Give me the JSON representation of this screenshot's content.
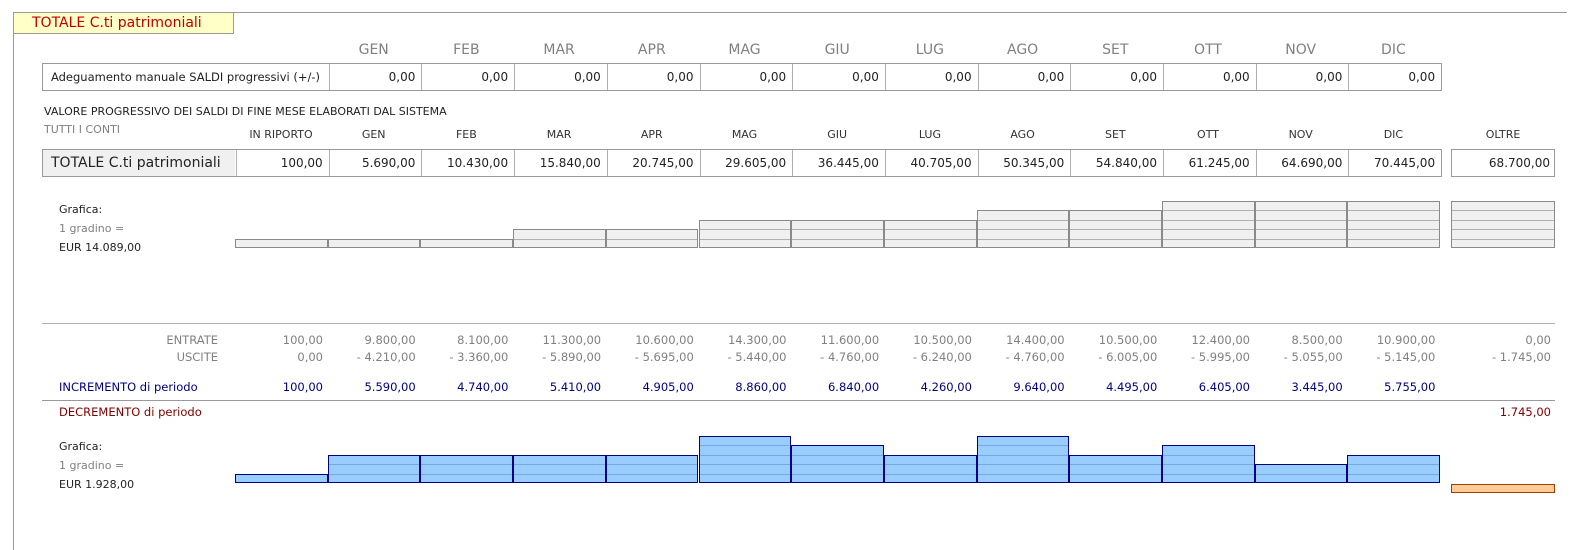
{
  "title": "TOTALE C.ti patrimoniali",
  "months": [
    "GEN",
    "FEB",
    "MAR",
    "APR",
    "MAG",
    "GIU",
    "LUG",
    "AGO",
    "SET",
    "OTT",
    "NOV",
    "DIC"
  ],
  "adjustment": {
    "label": "Adeguamento manuale SALDI progressivi (+/-)",
    "values": [
      "0,00",
      "0,00",
      "0,00",
      "0,00",
      "0,00",
      "0,00",
      "0,00",
      "0,00",
      "0,00",
      "0,00",
      "0,00",
      "0,00"
    ]
  },
  "section_caption": "VALORE PROGRESSIVO DEI SALDI DI FINE MESE ELABORATI DAL SISTEMA",
  "sub_caption": "TUTTI I CONTI",
  "totals": {
    "headers": [
      "IN RIPORTO",
      "GEN",
      "FEB",
      "MAR",
      "APR",
      "MAG",
      "GIU",
      "LUG",
      "AGO",
      "SET",
      "OTT",
      "NOV",
      "DIC"
    ],
    "oltre_header": "OLTRE",
    "label": "TOTALE C.ti patrimoniali",
    "values": [
      "100,00",
      "5.690,00",
      "10.430,00",
      "15.840,00",
      "20.745,00",
      "29.605,00",
      "36.445,00",
      "40.705,00",
      "50.345,00",
      "54.840,00",
      "61.245,00",
      "64.690,00",
      "70.445,00"
    ],
    "oltre": "68.700,00"
  },
  "chart1": {
    "label1": "Grafica:",
    "label2": "1 gradino =",
    "label3": "EUR 14.089,00",
    "steps": [
      1,
      1,
      1,
      2,
      2,
      3,
      3,
      3,
      4,
      4,
      5,
      5,
      5
    ],
    "oltre_steps": 5
  },
  "flows": {
    "entrate_label": "ENTRATE",
    "uscite_label": "USCITE",
    "entrate": [
      "100,00",
      "9.800,00",
      "8.100,00",
      "11.300,00",
      "10.600,00",
      "14.300,00",
      "11.600,00",
      "10.500,00",
      "14.400,00",
      "10.500,00",
      "12.400,00",
      "8.500,00",
      "10.900,00"
    ],
    "entrate_oltre": "0,00",
    "uscite": [
      "0,00",
      "- 4.210,00",
      "- 3.360,00",
      "- 5.890,00",
      "- 5.695,00",
      "- 5.440,00",
      "- 4.760,00",
      "- 6.240,00",
      "- 4.760,00",
      "- 6.005,00",
      "- 5.995,00",
      "- 5.055,00",
      "- 5.145,00"
    ],
    "uscite_oltre": "- 1.745,00",
    "incremento_label": "INCREMENTO di periodo",
    "incremento": [
      "100,00",
      "5.590,00",
      "4.740,00",
      "5.410,00",
      "4.905,00",
      "8.860,00",
      "6.840,00",
      "4.260,00",
      "9.640,00",
      "4.495,00",
      "6.405,00",
      "3.445,00",
      "5.755,00"
    ],
    "decremento_label": "DECREMENTO di periodo",
    "decremento_oltre": "1.745,00"
  },
  "chart2": {
    "label1": "Grafica:",
    "label2": "1 gradino =",
    "label3": "EUR 1.928,00",
    "steps": [
      1,
      3,
      3,
      3,
      3,
      5,
      4,
      3,
      5,
      3,
      4,
      2,
      3
    ],
    "oltre_steps": 1
  },
  "colors": {
    "title_bg": "#ffffc8",
    "title_text": "#c00000",
    "blue_fill": "#99ccff",
    "blue_border": "#000080",
    "gray_fill": "#f0f0f0",
    "orange_fill": "#ffcc99",
    "navy_text": "#000080",
    "maroon_text": "#800000"
  }
}
